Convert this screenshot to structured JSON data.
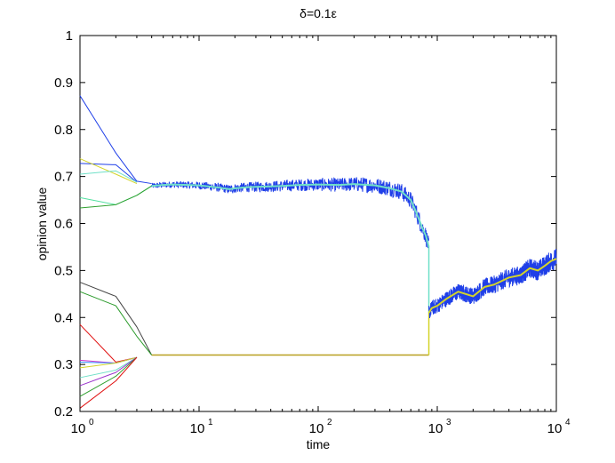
{
  "chart_data": {
    "type": "line",
    "title": "δ=0.1ε",
    "xlabel": "time",
    "ylabel": "opinion value",
    "xscale": "log",
    "xlim": [
      1,
      10000
    ],
    "ylim": [
      0.2,
      1.0
    ],
    "x_tick_labels": [
      {
        "base": "10",
        "exp": "0"
      },
      {
        "base": "10",
        "exp": "1"
      },
      {
        "base": "10",
        "exp": "2"
      },
      {
        "base": "10",
        "exp": "3"
      },
      {
        "base": "10",
        "exp": "4"
      }
    ],
    "y_tick_labels": [
      "0.2",
      "0.3",
      "0.4",
      "0.5",
      "0.6",
      "0.7",
      "0.8",
      "0.9",
      "1"
    ],
    "grid": false,
    "series": [
      {
        "color": "#1f3fe8",
        "x": [
          1,
          2,
          3,
          4
        ],
        "y": [
          0.872,
          0.75,
          0.69,
          0.685
        ]
      },
      {
        "color": "#1f3fe8",
        "x": [
          1,
          2,
          3
        ],
        "y": [
          0.728,
          0.725,
          0.688
        ]
      },
      {
        "color": "#d4d42a",
        "x": [
          1,
          2,
          3
        ],
        "y": [
          0.738,
          0.705,
          0.685
        ]
      },
      {
        "color": "#6fe0c8",
        "x": [
          1,
          2,
          3
        ],
        "y": [
          0.705,
          0.712,
          0.688
        ]
      },
      {
        "color": "#52e0a0",
        "x": [
          1,
          2,
          3,
          4
        ],
        "y": [
          0.655,
          0.64,
          0.66,
          0.68
        ]
      },
      {
        "color": "#2fa02f",
        "x": [
          1,
          2,
          3,
          4
        ],
        "y": [
          0.633,
          0.64,
          0.66,
          0.68
        ]
      },
      {
        "color": "#444444",
        "x": [
          1,
          2,
          3,
          4
        ],
        "y": [
          0.475,
          0.445,
          0.38,
          0.32
        ]
      },
      {
        "color": "#2a9a2a",
        "x": [
          1,
          2,
          3,
          4
        ],
        "y": [
          0.455,
          0.425,
          0.36,
          0.32
        ]
      },
      {
        "color": "#e01010",
        "x": [
          1,
          2,
          3
        ],
        "y": [
          0.385,
          0.305,
          0.315
        ]
      },
      {
        "color": "#cc33cc",
        "x": [
          1,
          2,
          3
        ],
        "y": [
          0.309,
          0.303,
          0.315
        ]
      },
      {
        "color": "#2f8cff",
        "x": [
          1,
          2,
          3
        ],
        "y": [
          0.305,
          0.303,
          0.315
        ]
      },
      {
        "color": "#d4d42a",
        "x": [
          1,
          2,
          3
        ],
        "y": [
          0.293,
          0.303,
          0.315
        ]
      },
      {
        "color": "#6fe0c8",
        "x": [
          1,
          2,
          3
        ],
        "y": [
          0.272,
          0.288,
          0.315
        ]
      },
      {
        "color": "#9a33cc",
        "x": [
          1,
          2,
          3
        ],
        "y": [
          0.255,
          0.283,
          0.315
        ]
      },
      {
        "color": "#2fa02f",
        "x": [
          1,
          2,
          3
        ],
        "y": [
          0.232,
          0.275,
          0.315
        ]
      },
      {
        "color": "#e01010",
        "x": [
          1,
          2,
          3
        ],
        "y": [
          0.207,
          0.265,
          0.315
        ]
      }
    ],
    "upper_cluster": {
      "color_band": "#1f3fe8",
      "color_mean": "#6fe0c8",
      "x": [
        4,
        5,
        6,
        8,
        10,
        12,
        15,
        18,
        20,
        25,
        30,
        40,
        50,
        70,
        100,
        150,
        200,
        300,
        400,
        500,
        600,
        650,
        700,
        750,
        800,
        850
      ],
      "y": [
        0.68,
        0.682,
        0.683,
        0.682,
        0.681,
        0.679,
        0.676,
        0.673,
        0.675,
        0.677,
        0.678,
        0.679,
        0.68,
        0.682,
        0.683,
        0.682,
        0.684,
        0.681,
        0.675,
        0.668,
        0.65,
        0.63,
        0.61,
        0.59,
        0.575,
        0.55
      ]
    },
    "lower_cluster": {
      "color": "#b8a020",
      "x": [
        4,
        850
      ],
      "y": [
        0.32,
        0.32
      ]
    },
    "merged_cluster": {
      "color_band": "#1f3fe8",
      "color_mean": "#d4d42a",
      "x": [
        850,
        900,
        1000,
        1200,
        1500,
        2000,
        2500,
        3000,
        3500,
        4000,
        5000,
        6000,
        7000,
        8000,
        9000,
        10000
      ],
      "y": [
        0.41,
        0.42,
        0.425,
        0.44,
        0.455,
        0.445,
        0.465,
        0.47,
        0.478,
        0.485,
        0.49,
        0.505,
        0.5,
        0.51,
        0.52,
        0.525
      ]
    },
    "annotations": []
  }
}
